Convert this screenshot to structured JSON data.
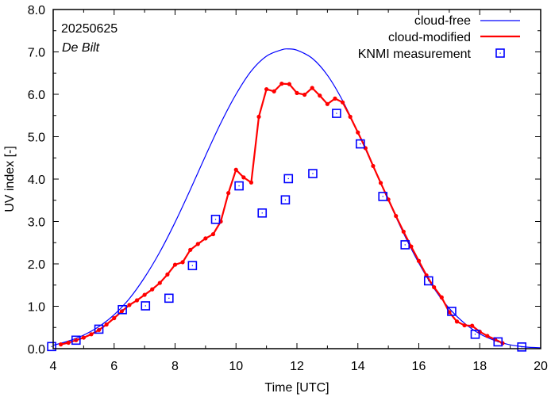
{
  "chart_data": {
    "type": "line",
    "title": "",
    "annotations": {
      "date": "20250625",
      "location": "De Bilt"
    },
    "xlabel": "Time  [UTC]",
    "ylabel": "UV index  [-]",
    "xlim": [
      4,
      20
    ],
    "ylim": [
      0,
      8
    ],
    "xticks": [
      4,
      6,
      8,
      10,
      12,
      14,
      16,
      18,
      20
    ],
    "xtick_labels": [
      "4",
      "6",
      "8",
      "10",
      "12",
      "14",
      "16",
      "18",
      "20"
    ],
    "xminor_step": 1,
    "yticks": [
      0,
      1,
      2,
      3,
      4,
      5,
      6,
      7,
      8
    ],
    "ytick_labels": [
      "0.0",
      "1.0",
      "2.0",
      "3.0",
      "4.0",
      "5.0",
      "6.0",
      "7.0",
      "8.0"
    ],
    "yminor_step": 0.5,
    "grid": false,
    "legend_position": "top-right",
    "series": [
      {
        "name": "cloud-free",
        "style": "line",
        "color": "#0000ff",
        "x": [
          4.0,
          4.5,
          5.0,
          5.5,
          6.0,
          6.5,
          7.0,
          7.5,
          8.0,
          8.5,
          9.0,
          9.5,
          10.0,
          10.5,
          11.0,
          11.5,
          11.7,
          12.0,
          12.5,
          13.0,
          13.5,
          14.0,
          14.5,
          15.0,
          15.5,
          16.0,
          16.5,
          17.0,
          17.5,
          18.0,
          18.5,
          19.0,
          19.5,
          20.0
        ],
        "y": [
          0.08,
          0.18,
          0.32,
          0.52,
          0.8,
          1.18,
          1.68,
          2.28,
          2.98,
          3.75,
          4.55,
          5.32,
          6.0,
          6.55,
          6.9,
          7.05,
          7.07,
          7.04,
          6.85,
          6.45,
          5.85,
          5.1,
          4.3,
          3.5,
          2.72,
          2.02,
          1.42,
          0.95,
          0.6,
          0.35,
          0.19,
          0.09,
          0.04,
          0.02
        ]
      },
      {
        "name": "cloud-modified",
        "style": "line-markers",
        "color": "#ff0000",
        "x": [
          4.25,
          4.5,
          4.75,
          5.0,
          5.25,
          5.5,
          5.75,
          6.0,
          6.25,
          6.5,
          6.75,
          7.0,
          7.25,
          7.5,
          7.75,
          8.0,
          8.25,
          8.5,
          8.75,
          9.0,
          9.25,
          9.5,
          9.75,
          10.0,
          10.25,
          10.5,
          10.75,
          11.0,
          11.25,
          11.5,
          11.75,
          12.0,
          12.25,
          12.5,
          12.75,
          13.0,
          13.25,
          13.5,
          13.75,
          14.0,
          14.25,
          14.5,
          14.75,
          15.0,
          15.25,
          15.5,
          15.75,
          16.0,
          16.25,
          16.5,
          16.75,
          17.0,
          17.25,
          17.5,
          17.75,
          18.0,
          18.25,
          18.5,
          18.75
        ],
        "y": [
          0.1,
          0.14,
          0.2,
          0.26,
          0.34,
          0.44,
          0.57,
          0.72,
          0.88,
          1.03,
          1.14,
          1.27,
          1.4,
          1.55,
          1.75,
          1.98,
          2.04,
          2.33,
          2.47,
          2.6,
          2.7,
          3.0,
          3.67,
          4.22,
          4.04,
          3.92,
          5.47,
          6.12,
          6.07,
          6.25,
          6.24,
          6.03,
          5.99,
          6.15,
          5.97,
          5.77,
          5.9,
          5.81,
          5.47,
          5.1,
          4.73,
          4.31,
          3.91,
          3.52,
          3.13,
          2.76,
          2.41,
          2.07,
          1.73,
          1.45,
          1.21,
          0.86,
          0.64,
          0.55,
          0.54,
          0.4,
          0.3,
          0.22,
          0.13
        ]
      },
      {
        "name": "KNMI measurement",
        "style": "markers",
        "color": "#0000ff",
        "x": [
          3.95,
          4.75,
          5.5,
          6.27,
          7.03,
          7.8,
          8.57,
          9.33,
          10.1,
          10.86,
          11.62,
          11.72,
          12.52,
          13.3,
          14.08,
          14.82,
          15.55,
          16.32,
          17.08,
          17.85,
          18.6,
          19.38
        ],
        "y": [
          0.05,
          0.2,
          0.46,
          0.92,
          1.01,
          1.19,
          1.96,
          3.05,
          3.84,
          3.2,
          3.51,
          4.01,
          4.13,
          5.55,
          4.83,
          3.59,
          2.45,
          1.6,
          0.88,
          0.34,
          0.16,
          0.04
        ]
      }
    ]
  }
}
